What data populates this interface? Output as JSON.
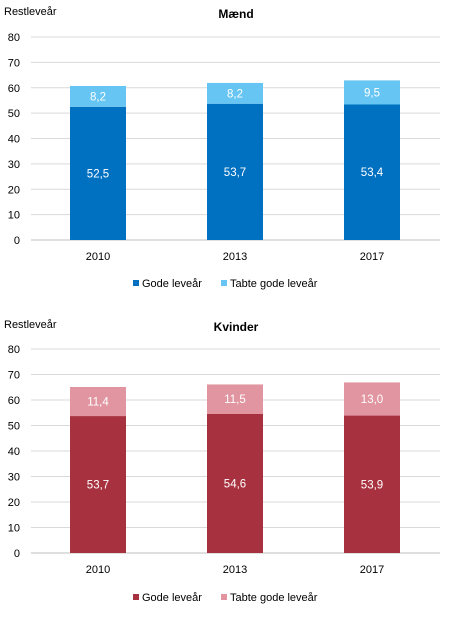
{
  "chart_data": [
    {
      "type": "bar",
      "stacked": true,
      "title": "Mænd",
      "ylabel": "Restleveår",
      "xlabel": "",
      "ylim": [
        0,
        80
      ],
      "yticks": [
        0,
        10,
        20,
        30,
        40,
        50,
        60,
        70,
        80
      ],
      "categories": [
        "2010",
        "2013",
        "2017"
      ],
      "series": [
        {
          "name": "Gode leveår",
          "values": [
            52.5,
            53.7,
            53.4
          ],
          "labels": [
            "52,5",
            "53,7",
            "53,4"
          ],
          "color": "#0070C0"
        },
        {
          "name": "Tabte gode leveår",
          "values": [
            8.2,
            8.2,
            9.5
          ],
          "labels": [
            "8,2",
            "8,2",
            "9,5"
          ],
          "color": "#66C5F2"
        }
      ],
      "legend": "bottom",
      "grid": true
    },
    {
      "type": "bar",
      "stacked": true,
      "title": "Kvinder",
      "ylabel": "Restleveår",
      "xlabel": "",
      "ylim": [
        0,
        80
      ],
      "yticks": [
        0,
        10,
        20,
        30,
        40,
        50,
        60,
        70,
        80
      ],
      "categories": [
        "2010",
        "2013",
        "2017"
      ],
      "series": [
        {
          "name": "Gode leveår",
          "values": [
            53.7,
            54.6,
            53.9
          ],
          "labels": [
            "53,7",
            "54,6",
            "53,9"
          ],
          "color": "#A8313F"
        },
        {
          "name": "Tabte gode leveår",
          "values": [
            11.4,
            11.5,
            13.0
          ],
          "labels": [
            "11,4",
            "11,5",
            "13,0"
          ],
          "color": "#E195A0"
        }
      ],
      "legend": "bottom",
      "grid": true
    }
  ]
}
